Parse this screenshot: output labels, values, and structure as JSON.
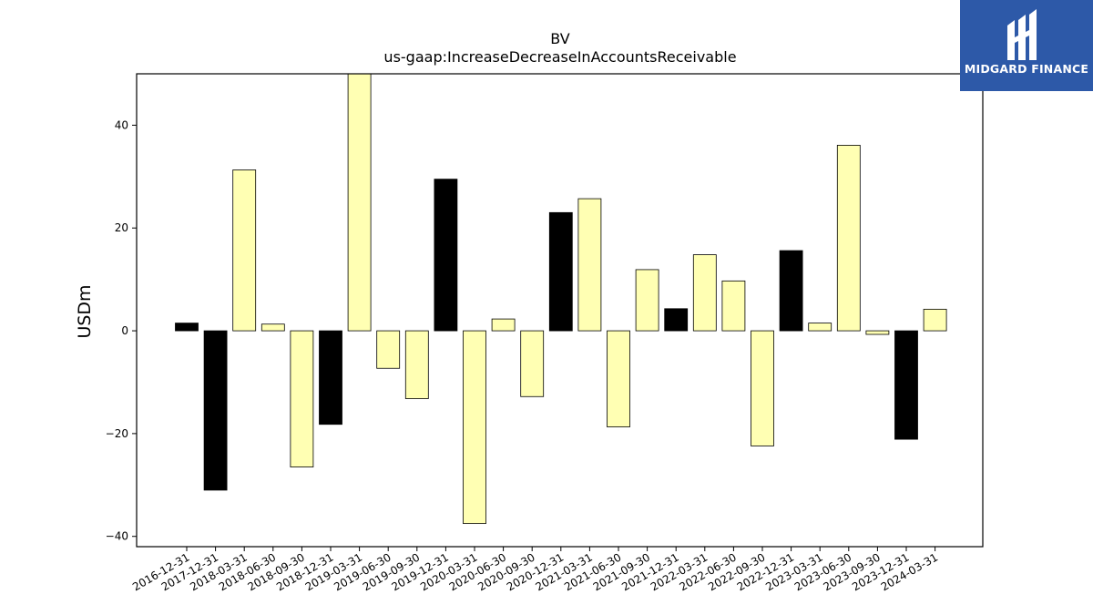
{
  "logo": {
    "text": "MIDGARD FINANCE"
  },
  "colors": {
    "positive": "#ffffb3",
    "highlight": "#000000",
    "edge": "#000000"
  },
  "chart_data": {
    "type": "bar",
    "title": "BV",
    "subtitle": "us-gaap:IncreaseDecreaseInAccountsReceivable",
    "ylabel": "USDm",
    "xlabel": "",
    "ylim": [
      -42,
      50
    ],
    "yticks": [
      -40,
      -20,
      0,
      20,
      40
    ],
    "grid": false,
    "categories": [
      "2016-12-31",
      "2017-12-31",
      "2018-03-31",
      "2018-06-30",
      "2018-09-30",
      "2018-12-31",
      "2019-03-31",
      "2019-06-30",
      "2019-09-30",
      "2019-12-31",
      "2020-03-31",
      "2020-06-30",
      "2020-09-30",
      "2020-12-31",
      "2021-03-31",
      "2021-06-30",
      "2021-09-30",
      "2021-12-31",
      "2022-03-31",
      "2022-06-30",
      "2022-09-30",
      "2022-12-31",
      "2023-03-31",
      "2023-06-30",
      "2023-09-30",
      "2023-12-31",
      "2024-03-31"
    ],
    "values": [
      1.5,
      -31,
      31.3,
      1.3,
      -26.5,
      -18.2,
      50,
      -7.3,
      -13.2,
      29.5,
      -37.5,
      2.3,
      -12.8,
      23,
      25.7,
      -18.7,
      11.9,
      4.3,
      14.8,
      9.7,
      -22.4,
      15.6,
      1.5,
      36.1,
      -0.7,
      -21.1,
      4.2
    ],
    "highlight": [
      true,
      true,
      false,
      false,
      false,
      true,
      false,
      false,
      false,
      true,
      false,
      false,
      false,
      true,
      false,
      false,
      false,
      true,
      false,
      false,
      false,
      true,
      false,
      false,
      false,
      true,
      false
    ]
  }
}
